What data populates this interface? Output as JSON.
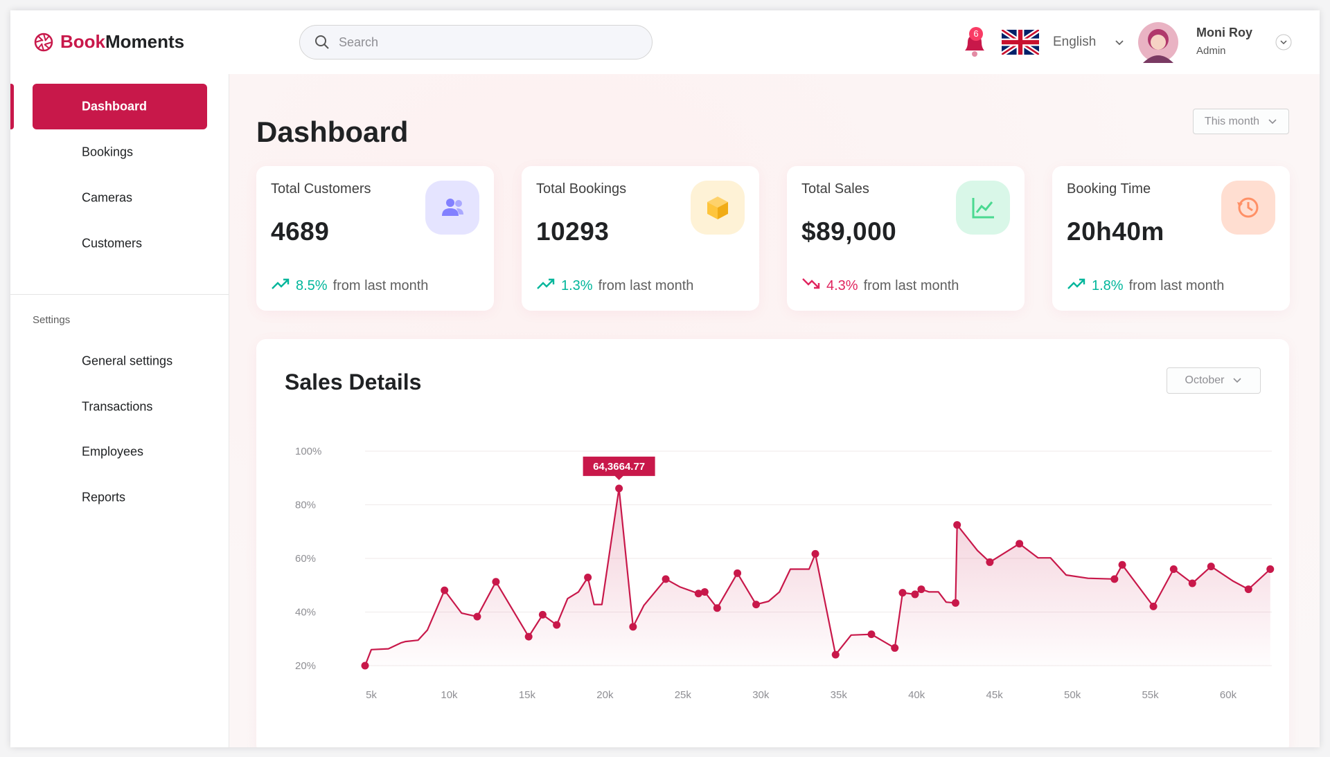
{
  "header": {
    "logo_prefix": "Book",
    "logo_suffix": "Moments",
    "search_placeholder": "Search",
    "notifications": "6",
    "language": "English",
    "user": {
      "name": "Moni Roy",
      "role": "Admin"
    }
  },
  "sidebar": {
    "menu": [
      "Dashboard",
      "Bookings",
      "Cameras",
      "Customers"
    ],
    "active": 0,
    "settings_label": "Settings",
    "settings_menu": [
      "General settings",
      "Transactions",
      "Employees",
      "Reports"
    ]
  },
  "main": {
    "title": "Dashboard",
    "period": "This month",
    "stats": [
      {
        "title": "Total Customers",
        "value": "4689",
        "change": "8.5%",
        "change_text": "from last month",
        "trend": "up"
      },
      {
        "title": "Total Bookings",
        "value": "10293",
        "change": "1.3%",
        "change_text": "from last month",
        "trend": "up"
      },
      {
        "title": "Total Sales",
        "value": "$89,000",
        "change": "4.3%",
        "change_text": "from last month",
        "trend": "down"
      },
      {
        "title": "Booking Time",
        "value": "20h40m",
        "change": "1.8%",
        "change_text": "from last month",
        "trend": "up"
      }
    ]
  },
  "sales_filter": "October",
  "chart_data": {
    "type": "line",
    "title": "Sales Details",
    "color": "#c8184a",
    "annotation": "64,3664.77",
    "grid": true,
    "x": [
      4600,
      5000,
      6100,
      6900,
      7200,
      8000,
      8600,
      9700,
      10800,
      11800,
      13000,
      15100,
      16000,
      16900,
      17600,
      18300,
      18900,
      19300,
      19800,
      20900,
      21800,
      22500,
      23900,
      24800,
      26000,
      26400,
      27200,
      28500,
      29700,
      30500,
      31200,
      31900,
      33100,
      33500,
      34800,
      35800,
      37100,
      38600,
      39100,
      39900,
      40300,
      40800,
      41400,
      41900,
      42500,
      42600,
      43900,
      44700,
      46600,
      47800,
      48600,
      49600,
      51000,
      52700,
      53200,
      55200,
      56500,
      57700,
      58900,
      60300,
      61300,
      62700
    ],
    "values": [
      20,
      26,
      26.3,
      28.5,
      29,
      29.5,
      33.3,
      48.1,
      39.6,
      38.3,
      51.3,
      30.8,
      39,
      35.2,
      45,
      47.5,
      52.9,
      42.8,
      42.8,
      86.1,
      34.5,
      42.5,
      52.3,
      49.4,
      46.9,
      47.5,
      41.5,
      54.5,
      42.8,
      44,
      47.5,
      56,
      56,
      61.7,
      24.1,
      31.4,
      31.7,
      26.6,
      47.2,
      46.6,
      48.5,
      47.5,
      47.5,
      43.7,
      43.4,
      72.5,
      63,
      58.6,
      65.5,
      60.2,
      60.2,
      53.8,
      52.6,
      52.3,
      57.6,
      42.1,
      56,
      50.7,
      57,
      51.6,
      48.5,
      56
    ],
    "xlim": [
      4600,
      62800
    ],
    "ylim": [
      20,
      100
    ],
    "xticks": [
      {
        "value": 5000,
        "label": "5k"
      },
      {
        "value": 10000,
        "label": "10k"
      },
      {
        "value": 15000,
        "label": "15k"
      },
      {
        "value": 20000,
        "label": "20k"
      },
      {
        "value": 25000,
        "label": "25k"
      },
      {
        "value": 30000,
        "label": "30k"
      },
      {
        "value": 35000,
        "label": "35k"
      },
      {
        "value": 40000,
        "label": "40k"
      },
      {
        "value": 45000,
        "label": "45k"
      },
      {
        "value": 50000,
        "label": "50k"
      },
      {
        "value": 55000,
        "label": "55k"
      },
      {
        "value": 60000,
        "label": "60k"
      }
    ],
    "yticks": [
      {
        "value": 100,
        "label": "100%"
      },
      {
        "value": 80,
        "label": "80%"
      },
      {
        "value": 60,
        "label": "60%"
      },
      {
        "value": 40,
        "label": "40%"
      },
      {
        "value": 20,
        "label": "20%"
      }
    ]
  }
}
